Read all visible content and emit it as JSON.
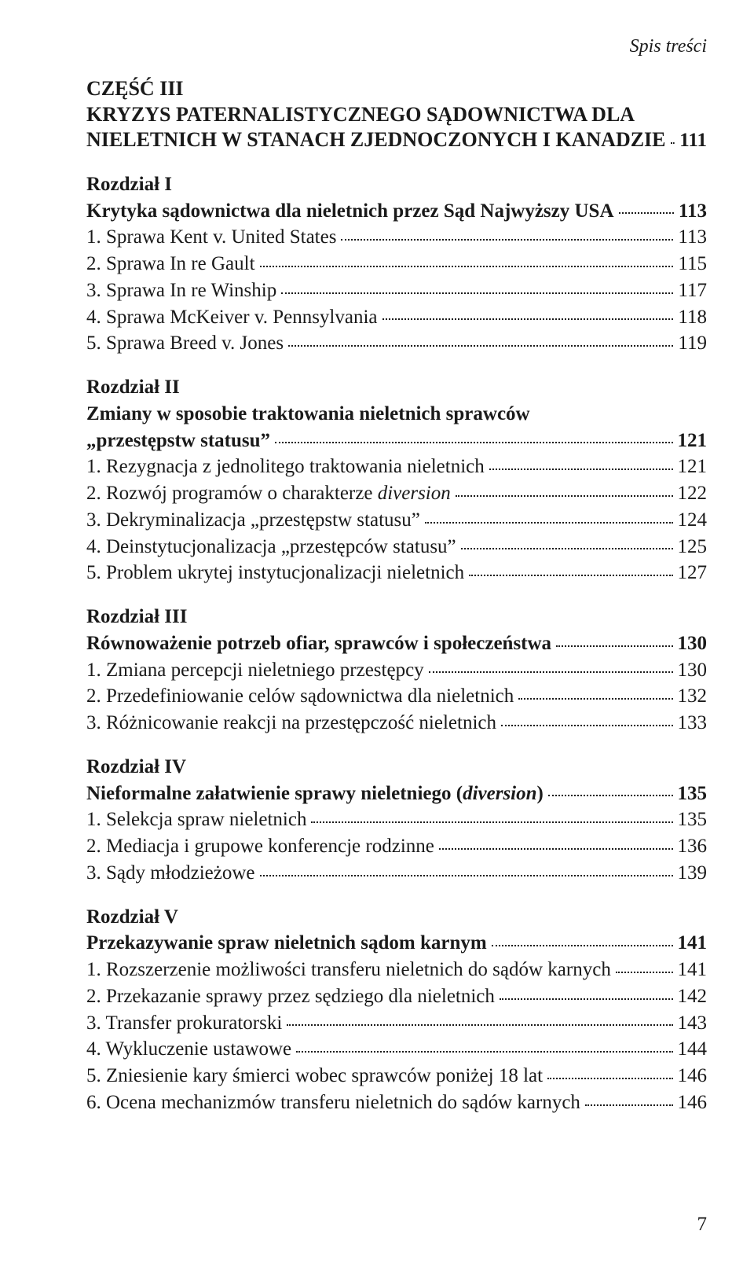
{
  "running_head": "Spis treści",
  "part": {
    "label": "CZĘŚĆ III",
    "title_lines": [
      "KRYZYS PATERNALISTYCZNEGO SĄDOWNICTWA DLA",
      "NIELETNICH W STANACH ZJEDNOCZONYCH I KANADZIE"
    ],
    "page": "111"
  },
  "chapters": [
    {
      "label": "Rozdział I",
      "title": "Krytyka sądownictwa dla nieletnich przez Sąd Najwyższy USA",
      "title_page": "113",
      "items": [
        {
          "text": "1. Sprawa Kent v. United States",
          "page": "113"
        },
        {
          "text": "2. Sprawa In re Gault",
          "page": "115"
        },
        {
          "text": "3. Sprawa In re Winship",
          "page": "117"
        },
        {
          "text": "4. Sprawa McKeiver v. Pennsylvania",
          "page": "118"
        },
        {
          "text": "5. Sprawa Breed v. Jones",
          "page": "119"
        }
      ]
    },
    {
      "label": "Rozdział II",
      "title_lines_bold": [
        "Zmiany w sposobie traktowania nieletnich sprawców"
      ],
      "title_last": "„przestępstw statusu”",
      "title_page": "121",
      "items": [
        {
          "text": "1. Rezygnacja z jednolitego traktowania nieletnich",
          "page": "121"
        },
        {
          "pre": "2. Rozwój programów o charakterze ",
          "ital": "diversion",
          "page": "122"
        },
        {
          "text": "3. Dekryminalizacja „przestępstw statusu”",
          "page": "124"
        },
        {
          "text": "4. Deinstytucjonalizacja „przestępców statusu”",
          "page": "125"
        },
        {
          "text": "5. Problem ukrytej instytucjonalizacji nieletnich",
          "page": "127"
        }
      ]
    },
    {
      "label": "Rozdział III",
      "title": "Równoważenie potrzeb ofiar, sprawców i społeczeństwa",
      "title_page": "130",
      "items": [
        {
          "text": "1. Zmiana percepcji nieletniego przestępcy",
          "page": "130"
        },
        {
          "text": "2. Przedefiniowanie celów sądownictwa dla nieletnich",
          "page": "132"
        },
        {
          "text": "3. Różnicowanie reakcji na przestępczość nieletnich",
          "page": "133"
        }
      ]
    },
    {
      "label": "Rozdział IV",
      "title_pre": "Nieformalne załatwienie sprawy nieletniego (",
      "title_ital": "diversion",
      "title_post": ")",
      "title_page": "135",
      "items": [
        {
          "text": "1. Selekcja spraw nieletnich",
          "page": "135"
        },
        {
          "text": "2. Mediacja i grupowe konferencje rodzinne",
          "page": "136"
        },
        {
          "text": "3. Sądy młodzieżowe",
          "page": "139"
        }
      ]
    },
    {
      "label": "Rozdział V",
      "title": "Przekazywanie spraw nieletnich sądom karnym",
      "title_page": "141",
      "items": [
        {
          "text": "1. Rozszerzenie możliwości transferu nieletnich do sądów karnych",
          "page": "141"
        },
        {
          "text": "2. Przekazanie sprawy przez sędziego dla nieletnich",
          "page": "142"
        },
        {
          "text": "3. Transfer prokuratorski",
          "page": "143"
        },
        {
          "text": "4. Wykluczenie ustawowe",
          "page": "144"
        },
        {
          "text": "5. Zniesienie kary śmierci wobec sprawców poniżej 18 lat",
          "page": "146"
        },
        {
          "text": "6. Ocena mechanizmów transferu nieletnich do sądów karnych",
          "page": "146"
        }
      ]
    }
  ],
  "page_number": "7",
  "colors": {
    "text": "#1a1a1a",
    "background": "#ffffff"
  }
}
